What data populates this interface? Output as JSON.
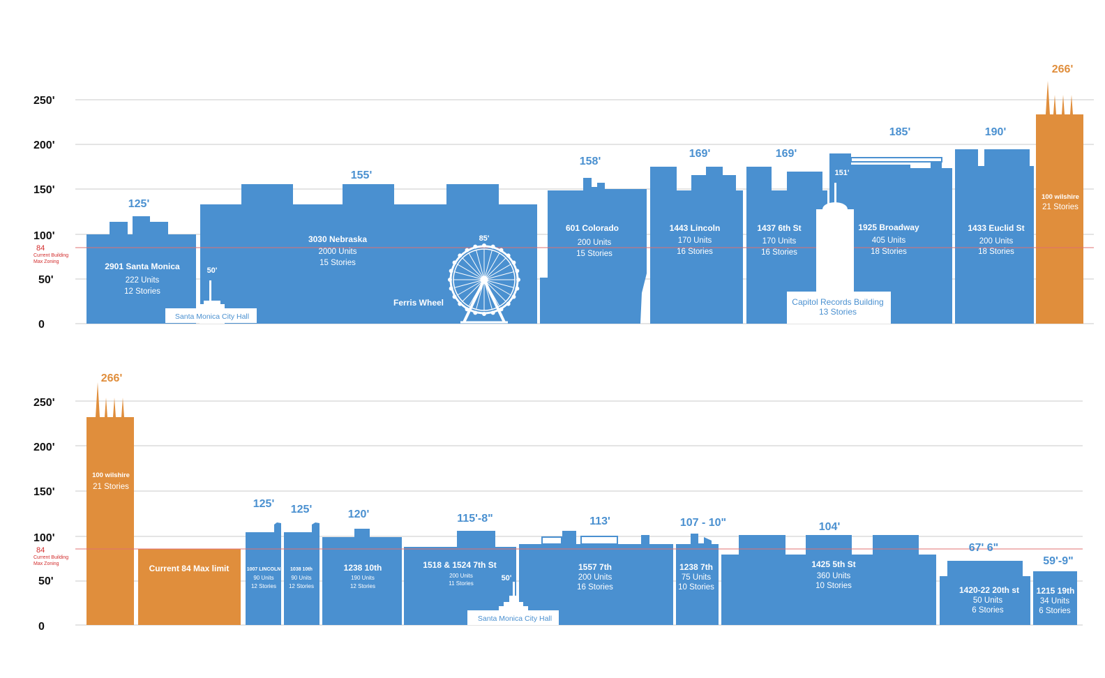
{
  "colors": {
    "blue": "#4a90d0",
    "orange": "#e08e3c",
    "grid": "#c8c8c8",
    "zoning": "#e07070",
    "label_blue": "#4a90d0",
    "label_orange": "#e08e3c"
  },
  "axis": {
    "ticks": [
      "250'",
      "200'",
      "150'",
      "100'",
      "50'",
      "0"
    ],
    "zoning_value": "84",
    "zoning_note_line1": "Current Building",
    "zoning_note_line2": "Max Zoning"
  },
  "top": {
    "buildings": [
      {
        "height_label": "125'",
        "name": "2901 Santa Monica",
        "units": "222 Units",
        "stories": "12 Stories"
      },
      {
        "height_label": "155'",
        "name": "3030 Nebraska",
        "units": "2000 Units",
        "stories": "15 Stories"
      },
      {
        "height_label": "158'",
        "name": "601 Colorado",
        "units": "200 Units",
        "stories": "15 Stories"
      },
      {
        "height_label": "169'",
        "name": "1443 Lincoln",
        "units": "170  Units",
        "stories": "16 Stories"
      },
      {
        "height_label": "169'",
        "name": "1437 6th St",
        "units": "170  Units",
        "stories": "16  Stories"
      },
      {
        "height_label": "185'",
        "name": "1925 Broadway",
        "units": "405 Units",
        "stories": "18 Stories"
      },
      {
        "height_label": "190'",
        "name": "1433 Euclid St",
        "units": "200 Units",
        "stories": "18 Stories"
      },
      {
        "height_label": "266'",
        "name": "100 wilshire",
        "stories": "21 Stories"
      }
    ],
    "landmarks": {
      "city_hall_height": "50'",
      "city_hall_name": "Santa Monica City Hall",
      "ferris_height": "85'",
      "ferris_name": "Ferris Wheel",
      "capitol_height": "151'",
      "capitol_name": "Capitol Records Building",
      "capitol_stories": "13 Stories"
    }
  },
  "bottom": {
    "buildings": [
      {
        "height_label": "266'",
        "name": "100 wilshire",
        "stories": "21 Stories"
      },
      {
        "name": "Current 84 Max limit"
      },
      {
        "height_label": "125'",
        "name": "1007 LINCOLN",
        "units": "90 Units",
        "stories": "12 Stories"
      },
      {
        "height_label": "125'",
        "name": "1038 10th",
        "units": "90 Units",
        "stories": "12 Stories"
      },
      {
        "height_label": "120'",
        "name": "1238 10th",
        "units": "190 Units",
        "stories": "12 Stories"
      },
      {
        "height_label": "115'-8\"",
        "name": "1518 & 1524 7th St",
        "units": "200 Units",
        "stories": "11  Stories"
      },
      {
        "height_label": "113'",
        "name": "1557 7th",
        "units": "200 Units",
        "stories": "16  Stories"
      },
      {
        "height_label": "107 - 10\"",
        "name": "1238 7th",
        "units": "75 Units",
        "stories": "10 Stories"
      },
      {
        "height_label": "104'",
        "name": "1425 5th St",
        "units": "360 Units",
        "stories": "10 Stories"
      },
      {
        "height_label": "67' 6\"",
        "name": "1420-22 20th st",
        "units": "50 Units",
        "stories": "6 Stories"
      },
      {
        "height_label": "59'-9\"",
        "name": "1215 19th",
        "units": "34 Units",
        "stories": "6 Stories"
      }
    ],
    "landmarks": {
      "city_hall_height": "50'",
      "city_hall_name": "Santa Monica City Hall"
    }
  }
}
